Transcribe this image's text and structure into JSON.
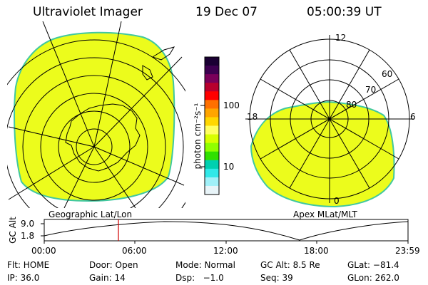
{
  "header": {
    "title": "Ultraviolet Imager",
    "date": "19 Dec 07",
    "time": "05:00:39 UT"
  },
  "left_panel": {
    "caption": "Geographic Lat/Lon"
  },
  "right_panel": {
    "caption": "Apex MLat/MLT",
    "mlt_labels": {
      "top": "12",
      "left": "18",
      "right": "6",
      "bottom": "0"
    },
    "lat_labels": [
      "60",
      "70",
      "80"
    ]
  },
  "colorbar": {
    "unit": "photon cm⁻²s⁻¹",
    "ticks": [
      "100",
      "10"
    ],
    "colors": [
      "#1a0033",
      "#3d0050",
      "#7a005a",
      "#b8002e",
      "#ff0000",
      "#ff7000",
      "#ffa500",
      "#ffd700",
      "#ffff60",
      "#d8ff00",
      "#90ff00",
      "#30e000",
      "#00d0b0",
      "#30e8e8",
      "#a0f0f8",
      "#e8f4f8"
    ]
  },
  "altitude_plot": {
    "ylabel": "GC Alt",
    "yticks": [
      "9.0",
      "1.8"
    ],
    "xticks": [
      "00:00",
      "06:00",
      "12:00",
      "18:00",
      "23:59"
    ]
  },
  "footer": {
    "flt": "Flt: HOME",
    "door": "Door: Open",
    "mode": "Mode: Normal",
    "gcalt": "GC Alt: 8.5 Re",
    "glat": "GLat: −81.4",
    "ip": "IP: 36.0",
    "gain": "Gain: 14",
    "dsp": "Dsp:   −1.0",
    "seq": "Seq: 39",
    "glon": "GLon: 262.0"
  },
  "colors": {
    "aurora_fill": "#ecfc1c",
    "edge": "#40c8a0",
    "marker": "#d00000"
  }
}
